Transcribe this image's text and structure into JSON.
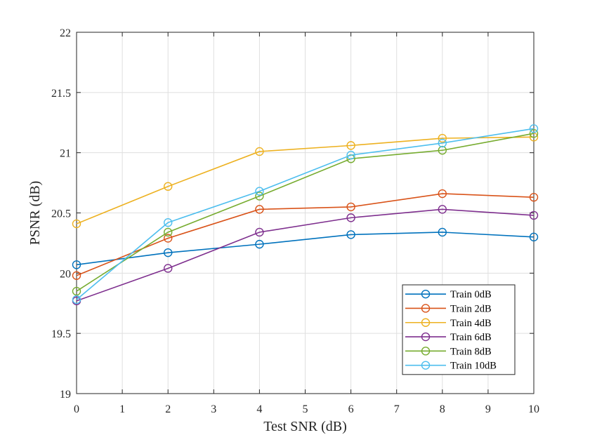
{
  "chart_data": {
    "type": "line",
    "title": "",
    "xlabel": "Test SNR (dB)",
    "ylabel": "PSNR (dB)",
    "xlim": [
      0,
      10
    ],
    "ylim": [
      19,
      22
    ],
    "xticks": [
      "0",
      "1",
      "2",
      "3",
      "4",
      "5",
      "6",
      "7",
      "8",
      "9",
      "10"
    ],
    "yticks": [
      "19",
      "19.5",
      "20",
      "20.5",
      "21",
      "21.5",
      "22"
    ],
    "grid": true,
    "legend_location": "bottom-right",
    "x": [
      0,
      2,
      4,
      6,
      8,
      10
    ],
    "series": [
      {
        "name": "Train 0dB",
        "color": "#0072BD",
        "values": [
          20.07,
          20.17,
          20.24,
          20.32,
          20.34,
          20.3
        ]
      },
      {
        "name": "Train 2dB",
        "color": "#D95319",
        "values": [
          19.98,
          20.29,
          20.53,
          20.55,
          20.66,
          20.63
        ]
      },
      {
        "name": "Train 4dB",
        "color": "#EDB120",
        "values": [
          20.41,
          20.72,
          21.01,
          21.06,
          21.12,
          21.13
        ]
      },
      {
        "name": "Train 6dB",
        "color": "#7E2F8E",
        "values": [
          19.77,
          20.04,
          20.34,
          20.46,
          20.53,
          20.48
        ]
      },
      {
        "name": "Train 8dB",
        "color": "#77AC30",
        "values": [
          19.85,
          20.34,
          20.64,
          20.95,
          21.02,
          21.16
        ]
      },
      {
        "name": "Train 10dB",
        "color": "#4DBEEE",
        "values": [
          19.78,
          20.42,
          20.68,
          20.98,
          21.08,
          21.2
        ]
      }
    ]
  }
}
